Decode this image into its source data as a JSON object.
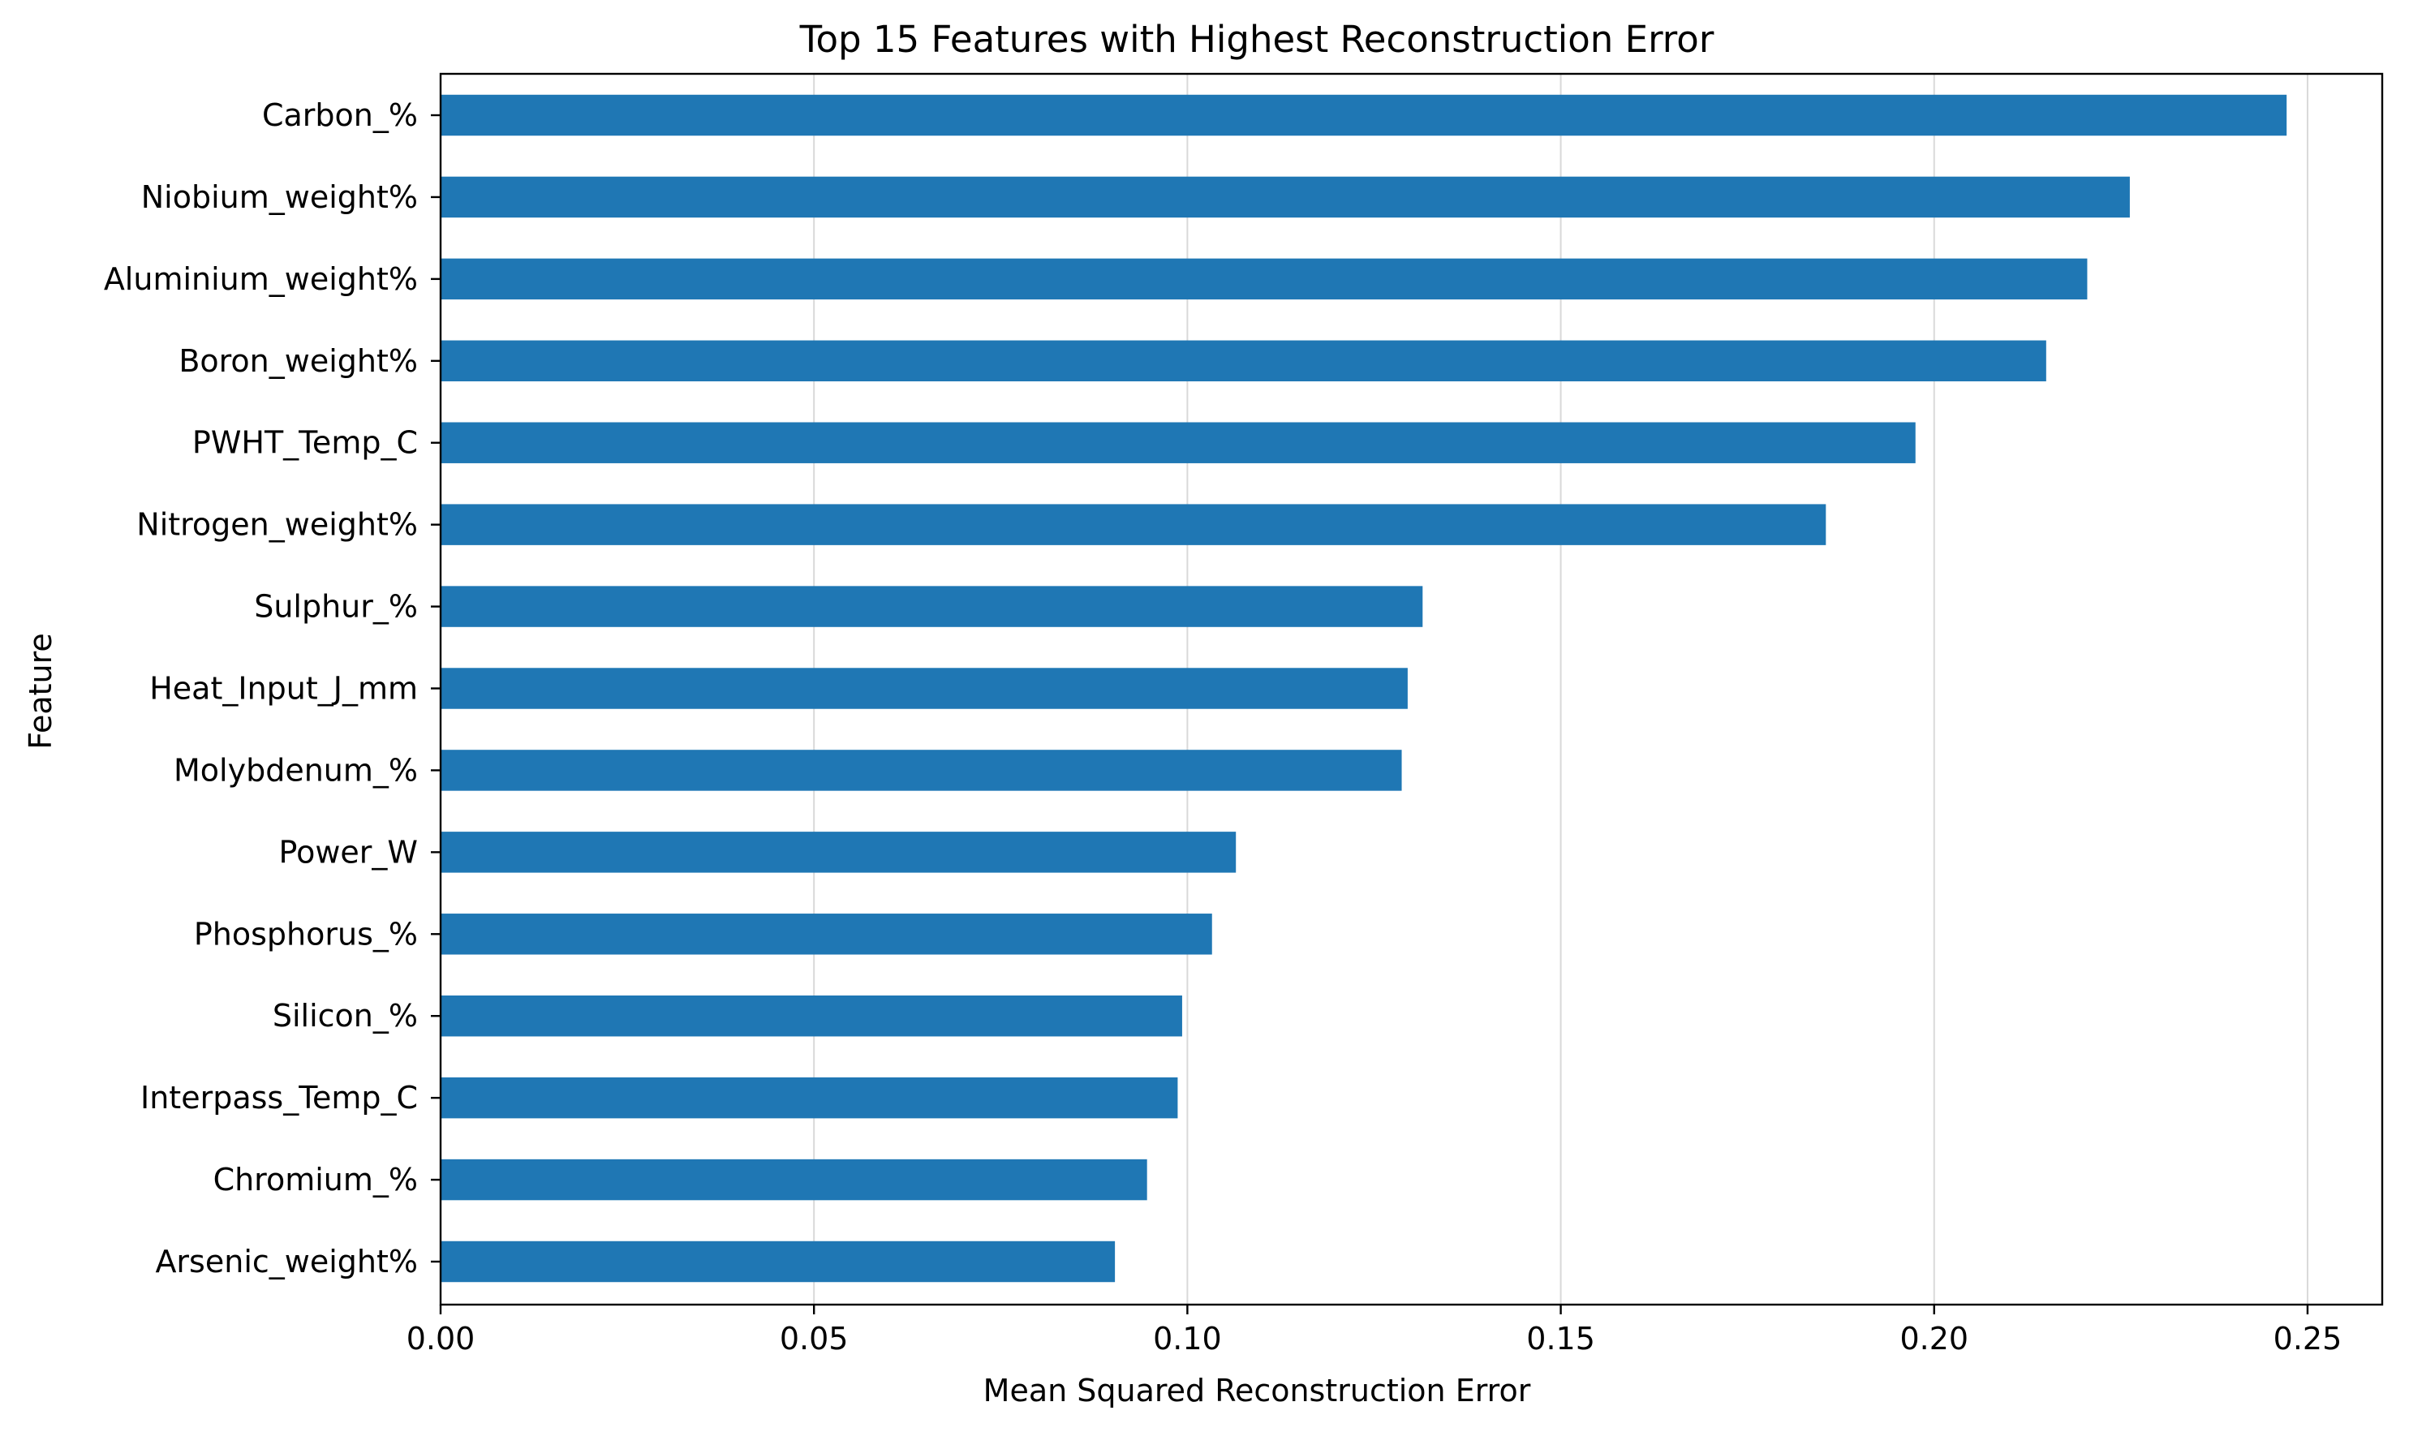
{
  "chart_data": {
    "type": "bar",
    "orientation": "horizontal",
    "title": "Top 15 Features with Highest Reconstruction Error",
    "xlabel": "Mean Squared Reconstruction Error",
    "ylabel": "Feature",
    "categories": [
      "Carbon_%",
      "Niobium_weight%",
      "Aluminium_weight%",
      "Boron_weight%",
      "PWHT_Temp_C",
      "Nitrogen_weight%",
      "Sulphur_%",
      "Heat_Input_J_mm",
      "Molybdenum_%",
      "Power_W",
      "Phosphorus_%",
      "Silicon_%",
      "Interpass_Temp_C",
      "Chromium_%",
      "Arsenic_weight%"
    ],
    "values": [
      0.2472,
      0.2262,
      0.2205,
      0.215,
      0.1975,
      0.1855,
      0.1315,
      0.1295,
      0.1287,
      0.1065,
      0.1033,
      0.0993,
      0.0987,
      0.0946,
      0.0903
    ],
    "xlim": [
      0,
      0.26
    ],
    "xticks": [
      "0.00",
      "0.05",
      "0.10",
      "0.15",
      "0.20",
      "0.25"
    ],
    "xtick_values": [
      0,
      0.05,
      0.1,
      0.15,
      0.2,
      0.25
    ],
    "grid": "x",
    "bar_color": "#1f77b4",
    "grid_color": "#d9d9d9"
  }
}
